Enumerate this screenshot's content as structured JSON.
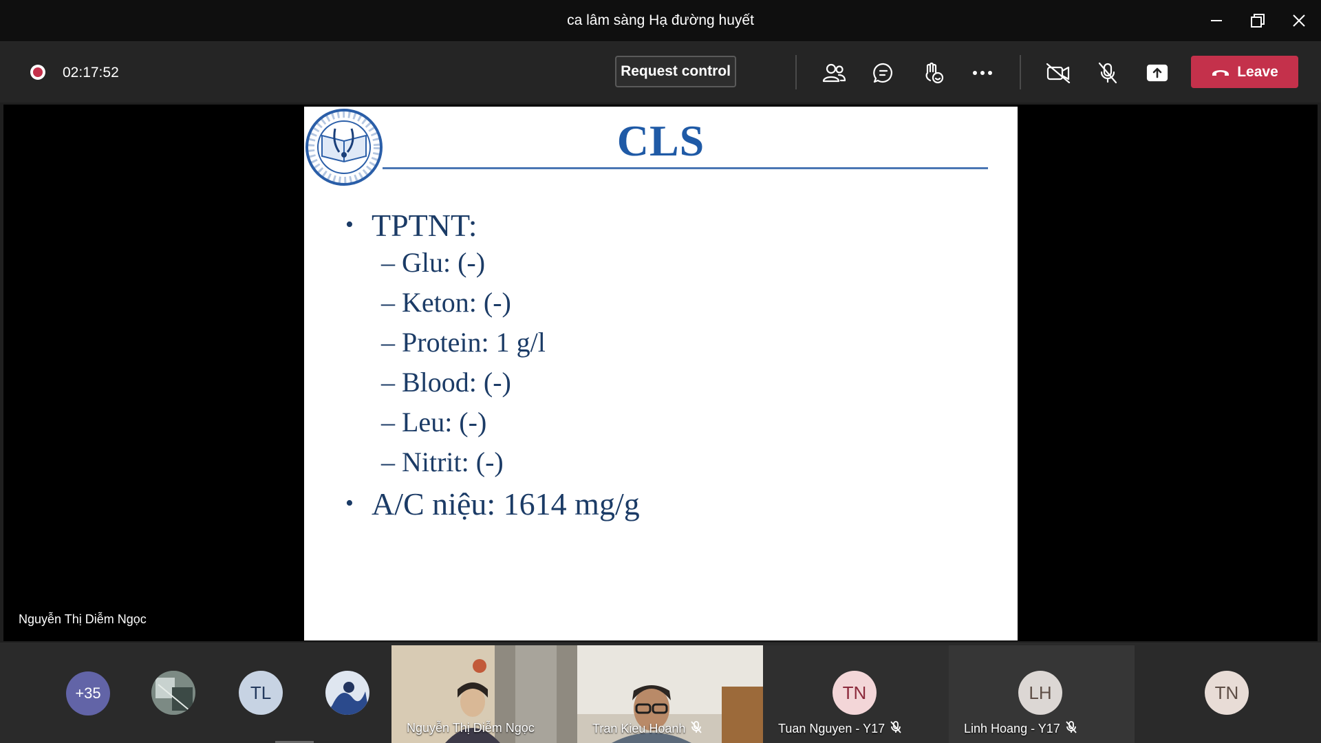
{
  "window": {
    "title": "ca lâm sàng Hạ đường huyết"
  },
  "toolbar": {
    "recording_timer": "02:17:52",
    "request_control_label": "Request control",
    "leave_label": "Leave",
    "icons": [
      "people-icon",
      "chat-icon",
      "raise-hand-icon",
      "more-options-icon",
      "camera-off-icon",
      "mic-off-icon",
      "share-screen-icon"
    ]
  },
  "slide": {
    "title": "CLS",
    "bullet1": "TPTNT:",
    "sub_items": [
      "– Glu: (-)",
      "– Keton: (-)",
      "– Protein: 1 g/l",
      "– Blood: (-)",
      "– Leu: (-)",
      "– Nitrit: (-)"
    ],
    "bullet2": "A/C niệu: 1614 mg/g"
  },
  "presenter": {
    "name": "Nguyễn Thị Diễm Ngọc"
  },
  "participants": {
    "overflow_count": "+35",
    "avatar_tl": "TL",
    "video_tiles": [
      {
        "name": "Nguyễn Thị Diễm Ngọc"
      },
      {
        "name": "Tran Kieu Hoanh"
      }
    ],
    "initial_tiles": [
      {
        "initials": "TN",
        "name": "Tuan Nguyen - Y17"
      },
      {
        "initials": "LH",
        "name": "Linh Hoang - Y17"
      }
    ],
    "last_avatar": "TN"
  },
  "colors": {
    "leave": "#c4314b",
    "slide_title": "#1f5aa6",
    "slide_text": "#1b3b66",
    "overflow_badge": "#6264a7"
  }
}
